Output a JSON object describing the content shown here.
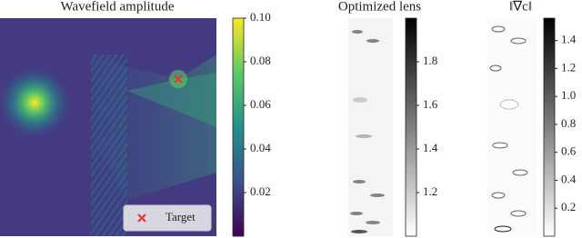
{
  "chart_data": [
    {
      "type": "heatmap",
      "title": "Wavefield amplitude",
      "cmap": "viridis",
      "clim": [
        0,
        0.1
      ],
      "cticks": [
        0.02,
        0.04,
        0.06,
        0.08,
        {
          "value": 0.1,
          "label": "0.10"
        }
      ],
      "legend": "lower right",
      "series": [
        {
          "name": "Target",
          "color": "#e8363a"
        }
      ]
    },
    {
      "type": "heatmap",
      "title": "Optimized lens",
      "cmap": "gray_r",
      "clim": [
        1.0,
        2.0
      ],
      "cticks": [
        1.2,
        1.4,
        1.6,
        1.8
      ]
    },
    {
      "type": "heatmap",
      "title": "‖∇c‖",
      "cmap": "gray_r",
      "clim": [
        0,
        1.56
      ],
      "cticks": [
        0.2,
        0.4,
        0.6,
        0.8,
        {
          "value": 1,
          "label": "1.0"
        },
        1.2,
        1.4
      ]
    }
  ]
}
